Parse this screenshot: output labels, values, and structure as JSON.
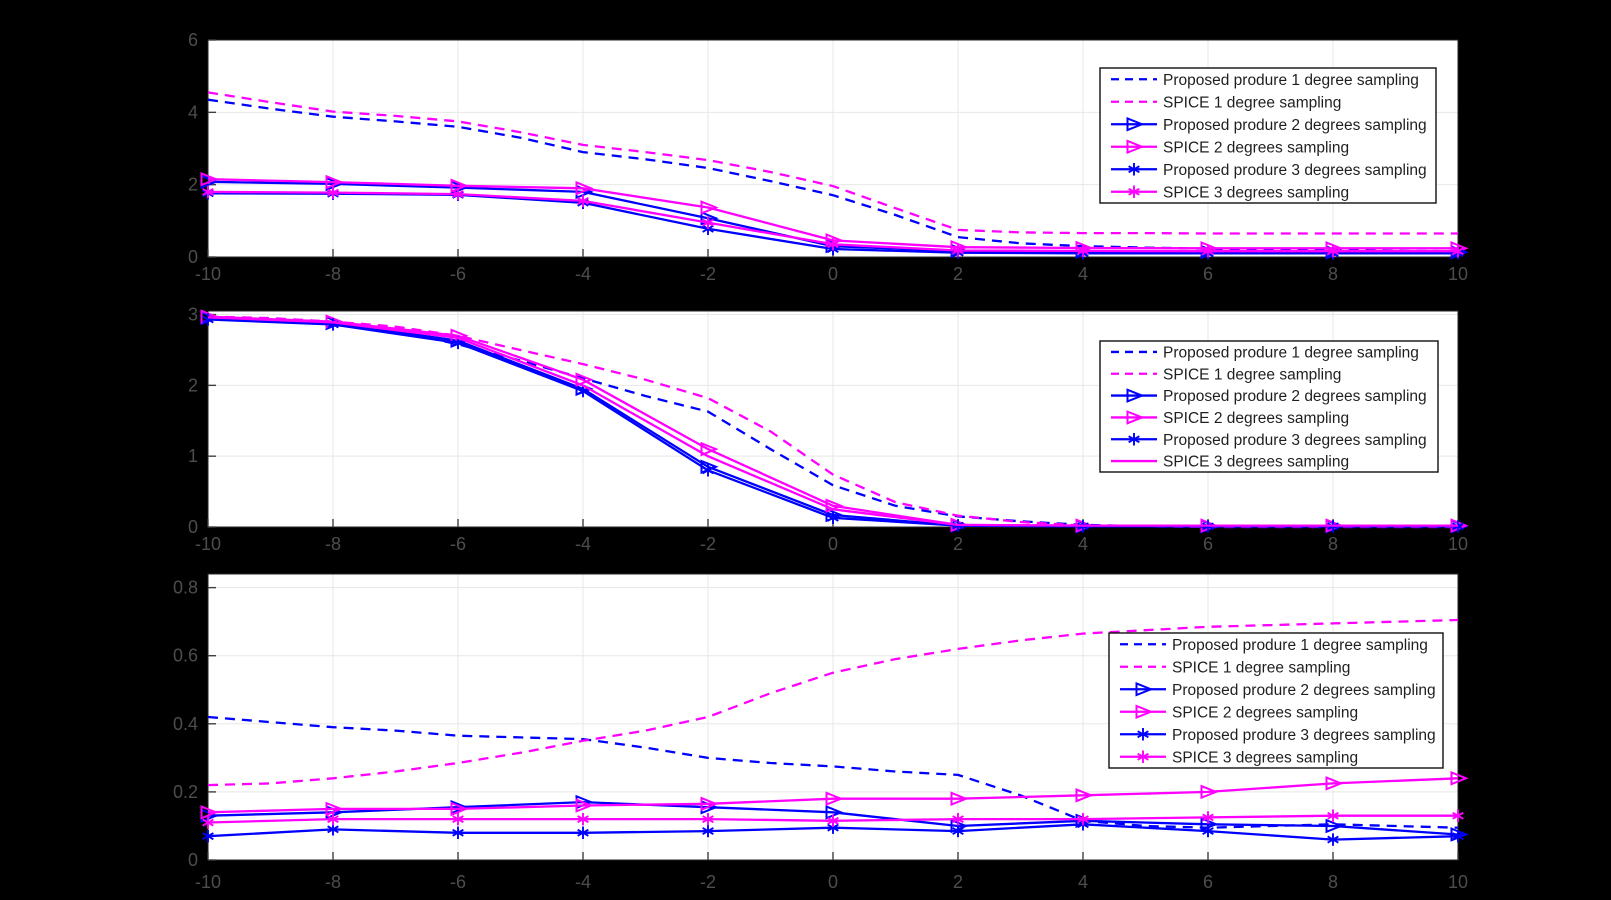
{
  "figure": {
    "background": "#000000",
    "plot_bg": "#FFFFFF",
    "colors": {
      "blue": "#0000FF",
      "magenta": "#FF00FF",
      "grid": "#E7E7E7",
      "axis_border": "#262626",
      "tick": "#3F3F3F",
      "tick_label": "#4D4D4D",
      "legend_text": "#1F1F1F",
      "legend_border": "#0F0F0F",
      "legend_bg": "#FFFFFF"
    },
    "legend_labels": [
      "Proposed produre 1 degree sampling",
      "SPICE 1 degree sampling",
      " Proposed produre 2 degrees sampling",
      "SPICE 2 degrees sampling",
      " Proposed produre 3 degrees sampling",
      "SPICE 3 degrees sampling"
    ]
  },
  "chart_data": [
    {
      "type": "line",
      "title": "",
      "xlabel": "",
      "ylabel": "",
      "xlim": [
        -10,
        10
      ],
      "ylim": [
        0,
        6
      ],
      "xtick_values": [
        -10,
        -8,
        -6,
        -4,
        -2,
        0,
        2,
        4,
        6,
        8,
        10
      ],
      "xtick_labels": [
        "-10",
        "-8",
        "-6",
        "-4",
        "-2",
        "0",
        "2",
        "4",
        "6",
        "8",
        "10"
      ],
      "ytick_values": [
        0,
        2,
        4,
        6
      ],
      "ytick_labels": [
        "0",
        "2",
        "4",
        "6"
      ],
      "grid": true,
      "legend_position": "northeast",
      "series": [
        {
          "name": "Proposed produre 1 degree sampling",
          "color": "blue",
          "line": "dashed",
          "marker": "none",
          "x": [
            -10,
            -9,
            -8,
            -7,
            -6,
            -5,
            -4,
            -3,
            -2,
            -1,
            0,
            1,
            2,
            3,
            4,
            5,
            6,
            7,
            8,
            9,
            10
          ],
          "y": [
            4.35,
            4.1,
            3.88,
            3.75,
            3.6,
            3.3,
            2.9,
            2.7,
            2.46,
            2.1,
            1.71,
            1.16,
            0.55,
            0.38,
            0.3,
            0.26,
            0.23,
            0.2,
            0.18,
            0.17,
            0.16
          ]
        },
        {
          "name": "SPICE 1 degree sampling",
          "color": "magenta",
          "line": "dashed",
          "marker": "none",
          "x": [
            -10,
            -9,
            -8,
            -7,
            -6,
            -5,
            -4,
            -3,
            -2,
            -1,
            0,
            1,
            2,
            3,
            4,
            5,
            6,
            7,
            8,
            9,
            10
          ],
          "y": [
            4.55,
            4.28,
            4.02,
            3.9,
            3.75,
            3.45,
            3.1,
            2.9,
            2.68,
            2.35,
            1.96,
            1.35,
            0.75,
            0.68,
            0.66,
            0.66,
            0.65,
            0.65,
            0.65,
            0.65,
            0.65
          ]
        },
        {
          "name": " Proposed produre 2 degrees sampling",
          "color": "blue",
          "line": "solid",
          "marker": "triangle",
          "x": [
            -10,
            -8,
            -6,
            -4,
            -2,
            0,
            2,
            4,
            6,
            8,
            10
          ],
          "y": [
            2.08,
            2.02,
            1.92,
            1.8,
            1.07,
            0.3,
            0.17,
            0.15,
            0.14,
            0.13,
            0.13
          ]
        },
        {
          "name": "SPICE 2 degrees sampling",
          "color": "magenta",
          "line": "solid",
          "marker": "triangle",
          "x": [
            -10,
            -8,
            -6,
            -4,
            -2,
            0,
            2,
            4,
            6,
            8,
            10
          ],
          "y": [
            2.15,
            2.07,
            1.97,
            1.9,
            1.37,
            0.46,
            0.27,
            0.25,
            0.24,
            0.24,
            0.24
          ]
        },
        {
          "name": " Proposed produre 3 degrees sampling",
          "color": "blue",
          "line": "solid",
          "marker": "asterisk",
          "x": [
            -10,
            -8,
            -6,
            -4,
            -2,
            0,
            2,
            4,
            6,
            8,
            10
          ],
          "y": [
            1.76,
            1.75,
            1.72,
            1.5,
            0.78,
            0.22,
            0.12,
            0.1,
            0.1,
            0.1,
            0.1
          ]
        },
        {
          "name": "SPICE 3 degrees sampling",
          "color": "magenta",
          "line": "solid",
          "marker": "asterisk",
          "x": [
            -10,
            -8,
            -6,
            -4,
            -2,
            0,
            2,
            4,
            6,
            8,
            10
          ],
          "y": [
            1.8,
            1.78,
            1.74,
            1.55,
            0.95,
            0.35,
            0.18,
            0.17,
            0.16,
            0.16,
            0.16
          ]
        }
      ]
    },
    {
      "type": "line",
      "title": "",
      "xlabel": "",
      "ylabel": "",
      "xlim": [
        -10,
        10
      ],
      "ylim": [
        0,
        3.05
      ],
      "xtick_values": [
        -10,
        -8,
        -6,
        -4,
        -2,
        0,
        2,
        4,
        6,
        8,
        10
      ],
      "xtick_labels": [
        "-10",
        "-8",
        "-6",
        "-4",
        "-2",
        "0",
        "2",
        "4",
        "6",
        "8",
        "10"
      ],
      "ytick_values": [
        0,
        1,
        2,
        3
      ],
      "ytick_labels": [
        "0",
        "1",
        "2",
        "3"
      ],
      "grid": true,
      "legend_position": "northeast",
      "series": [
        {
          "name": "Proposed produre 1 degree sampling",
          "color": "blue",
          "line": "dashed",
          "marker": "none",
          "x": [
            -10,
            -9,
            -8,
            -7,
            -6,
            -5,
            -4,
            -3,
            -2,
            -1,
            0,
            1,
            2,
            3,
            4,
            5,
            6,
            7,
            8,
            9,
            10
          ],
          "y": [
            2.95,
            2.92,
            2.86,
            2.77,
            2.58,
            2.35,
            2.1,
            1.85,
            1.63,
            1.1,
            0.59,
            0.3,
            0.15,
            0.08,
            0.03,
            0.01,
            0,
            0,
            0,
            0,
            0
          ]
        },
        {
          "name": "SPICE 1 degree sampling",
          "color": "magenta",
          "line": "dashed",
          "marker": "none",
          "x": [
            -10,
            -9,
            -8,
            -7,
            -6,
            -5,
            -4,
            -3,
            -2,
            -1,
            0,
            1,
            2,
            3,
            4,
            5,
            6,
            7,
            8,
            9,
            10
          ],
          "y": [
            2.97,
            2.95,
            2.9,
            2.83,
            2.7,
            2.5,
            2.3,
            2.08,
            1.82,
            1.35,
            0.74,
            0.35,
            0.16,
            0.07,
            0.02,
            0.01,
            0,
            0,
            0,
            0,
            0
          ]
        },
        {
          "name": " Proposed produre 2 degrees sampling",
          "color": "blue",
          "line": "solid",
          "marker": "triangle",
          "x": [
            -10,
            -8,
            -6,
            -4,
            -2,
            0,
            2,
            4,
            6,
            8,
            10
          ],
          "y": [
            2.95,
            2.88,
            2.63,
            1.95,
            0.85,
            0.17,
            0.02,
            0.01,
            0.01,
            0.01,
            0.01
          ]
        },
        {
          "name": "SPICE 2 degrees sampling",
          "color": "magenta",
          "line": "solid",
          "marker": "triangle",
          "x": [
            -10,
            -8,
            -6,
            -4,
            -2,
            0,
            2,
            4,
            6,
            8,
            10
          ],
          "y": [
            2.97,
            2.9,
            2.7,
            2.08,
            1.1,
            0.3,
            0.03,
            0.02,
            0.02,
            0.02,
            0.02
          ]
        },
        {
          "name": " Proposed produre 3 degrees sampling",
          "color": "blue",
          "line": "solid",
          "marker": "asterisk",
          "x": [
            -10,
            -8,
            -6,
            -4,
            -2,
            0,
            2,
            4,
            6,
            8,
            10
          ],
          "y": [
            2.93,
            2.86,
            2.6,
            1.92,
            0.8,
            0.13,
            0.02,
            0.01,
            0.01,
            0.01,
            0.01
          ]
        },
        {
          "name": "SPICE 3 degrees sampling",
          "color": "magenta",
          "line": "solid",
          "marker": "none",
          "x": [
            -10,
            -8,
            -6,
            -4,
            -2,
            0,
            2,
            4,
            6,
            8,
            10
          ],
          "y": [
            2.96,
            2.89,
            2.67,
            2.0,
            1.0,
            0.25,
            0.03,
            0.02,
            0.02,
            0.02,
            0.02
          ]
        }
      ]
    },
    {
      "type": "line",
      "title": "",
      "xlabel": "",
      "ylabel": "",
      "xlim": [
        -10,
        10
      ],
      "ylim": [
        0,
        0.84
      ],
      "xtick_values": [
        -10,
        -8,
        -6,
        -4,
        -2,
        0,
        2,
        4,
        6,
        8,
        10
      ],
      "xtick_labels": [
        "-10",
        "-8",
        "-6",
        "-4",
        "-2",
        "0",
        "2",
        "4",
        "6",
        "8",
        "10"
      ],
      "ytick_values": [
        0,
        0.2,
        0.4,
        0.6,
        0.8
      ],
      "ytick_labels": [
        "0",
        "0.2",
        "0.4",
        "0.6",
        "0.8"
      ],
      "grid": true,
      "legend_position": "northeast",
      "series": [
        {
          "name": " Proposed produre 1 degree sampling",
          "color": "blue",
          "line": "dashed",
          "marker": "none",
          "x": [
            -10,
            -9,
            -8,
            -7,
            -6,
            -5,
            -4,
            -3,
            -2,
            -1,
            0,
            1,
            2,
            3,
            4,
            5,
            6,
            7,
            8,
            9,
            10
          ],
          "y": [
            0.42,
            0.405,
            0.39,
            0.38,
            0.365,
            0.36,
            0.355,
            0.33,
            0.3,
            0.285,
            0.275,
            0.26,
            0.25,
            0.19,
            0.115,
            0.1,
            0.095,
            0.1,
            0.105,
            0.1,
            0.095
          ]
        },
        {
          "name": "SPICE 1 degree sampling",
          "color": "magenta",
          "line": "dashed",
          "marker": "none",
          "x": [
            -10,
            -9,
            -8,
            -7,
            -6,
            -5,
            -4,
            -3,
            -2,
            -1,
            0,
            1,
            2,
            3,
            4,
            5,
            6,
            7,
            8,
            9,
            10
          ],
          "y": [
            0.22,
            0.225,
            0.24,
            0.26,
            0.285,
            0.315,
            0.35,
            0.38,
            0.42,
            0.49,
            0.55,
            0.59,
            0.62,
            0.645,
            0.665,
            0.675,
            0.685,
            0.69,
            0.695,
            0.7,
            0.705
          ]
        },
        {
          "name": "Proposed produre 2 degrees sampling",
          "color": "blue",
          "line": "solid",
          "marker": "triangle",
          "x": [
            -10,
            -8,
            -6,
            -4,
            -2,
            0,
            2,
            4,
            6,
            8,
            10
          ],
          "y": [
            0.13,
            0.14,
            0.155,
            0.17,
            0.155,
            0.14,
            0.1,
            0.115,
            0.105,
            0.1,
            0.075
          ]
        },
        {
          "name": "SPICE 2 degrees sampling",
          "color": "magenta",
          "line": "solid",
          "marker": "triangle",
          "x": [
            -10,
            -8,
            -6,
            -4,
            -2,
            0,
            2,
            4,
            6,
            8,
            10
          ],
          "y": [
            0.14,
            0.15,
            0.15,
            0.16,
            0.165,
            0.18,
            0.18,
            0.19,
            0.2,
            0.225,
            0.24
          ]
        },
        {
          "name": "Proposed produre 3 degrees sampling",
          "color": "blue",
          "line": "solid",
          "marker": "asterisk",
          "x": [
            -10,
            -8,
            -6,
            -4,
            -2,
            0,
            2,
            4,
            6,
            8,
            10
          ],
          "y": [
            0.07,
            0.09,
            0.08,
            0.08,
            0.085,
            0.095,
            0.085,
            0.105,
            0.085,
            0.06,
            0.07
          ]
        },
        {
          "name": "SPICE 3 degrees sampling",
          "color": "magenta",
          "line": "solid",
          "marker": "asterisk",
          "x": [
            -10,
            -8,
            -6,
            -4,
            -2,
            0,
            2,
            4,
            6,
            8,
            10
          ],
          "y": [
            0.11,
            0.12,
            0.12,
            0.12,
            0.12,
            0.115,
            0.12,
            0.12,
            0.125,
            0.13,
            0.13
          ]
        }
      ]
    }
  ]
}
